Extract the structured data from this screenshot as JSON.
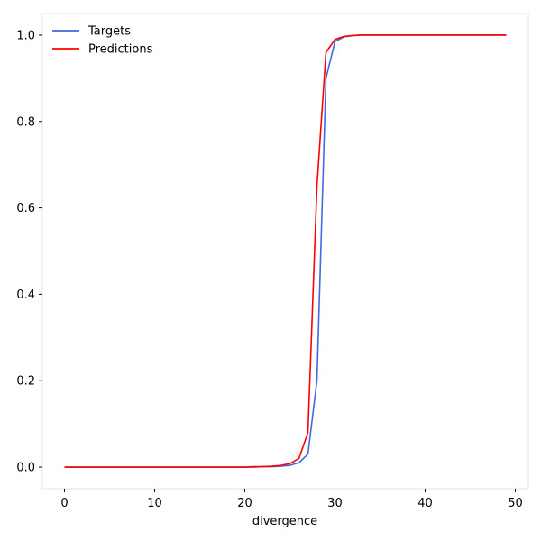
{
  "chart_data": {
    "type": "line",
    "title": "",
    "xlabel": "divergence",
    "ylabel": "",
    "xlim": [
      -2.45,
      51.45
    ],
    "ylim": [
      -0.05,
      1.05
    ],
    "x_ticks": [
      0,
      10,
      20,
      30,
      40,
      50
    ],
    "y_ticks": [
      0.0,
      0.2,
      0.4,
      0.6,
      0.8,
      1.0
    ],
    "x_tick_labels": [
      "0",
      "10",
      "20",
      "30",
      "40",
      "50"
    ],
    "y_tick_labels": [
      "0.0",
      "0.2",
      "0.4",
      "0.6",
      "0.8",
      "1.0"
    ],
    "grid": false,
    "legend_position": "top-left",
    "x": [
      0,
      1,
      2,
      3,
      4,
      5,
      6,
      7,
      8,
      9,
      10,
      11,
      12,
      13,
      14,
      15,
      16,
      17,
      18,
      19,
      20,
      21,
      22,
      23,
      24,
      25,
      26,
      27,
      28,
      29,
      30,
      31,
      32,
      33,
      34,
      35,
      36,
      37,
      38,
      39,
      40,
      41,
      42,
      43,
      44,
      45,
      46,
      47,
      48,
      49
    ],
    "series": [
      {
        "name": "Targets",
        "color": "#4169e1",
        "values": [
          0,
          0,
          0,
          0,
          0,
          0,
          0,
          0,
          0,
          0,
          0,
          0,
          0,
          0,
          0,
          0,
          0,
          0,
          0,
          0,
          0,
          0,
          0.001,
          0.001,
          0.002,
          0.004,
          0.01,
          0.03,
          0.2,
          0.9,
          0.985,
          0.996,
          0.999,
          1,
          1,
          1,
          1,
          1,
          1,
          1,
          1,
          1,
          1,
          1,
          1,
          1,
          1,
          1,
          1,
          1
        ]
      },
      {
        "name": "Predictions",
        "color": "#ff0000",
        "values": [
          0,
          0,
          0,
          0,
          0,
          0,
          0,
          0,
          0,
          0,
          0,
          0,
          0,
          0,
          0,
          0,
          0,
          0,
          0,
          0,
          0,
          0.001,
          0.001,
          0.002,
          0.004,
          0.008,
          0.02,
          0.08,
          0.65,
          0.96,
          0.99,
          0.997,
          0.999,
          1,
          1,
          1,
          1,
          1,
          1,
          1,
          1,
          1,
          1,
          1,
          1,
          1,
          1,
          1,
          1,
          1
        ]
      }
    ]
  }
}
